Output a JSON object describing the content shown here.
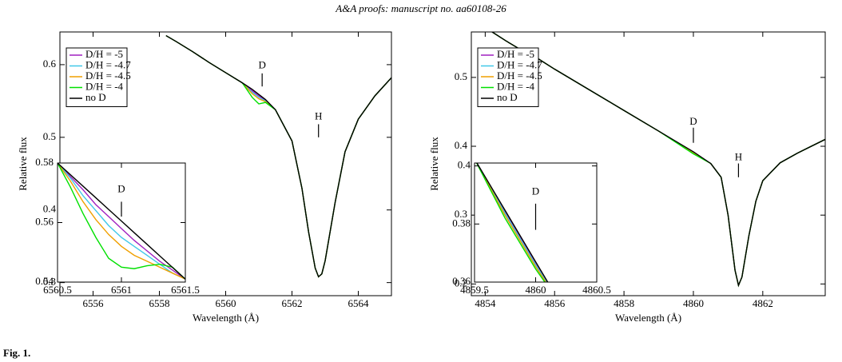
{
  "header": "A&A proofs: manuscript no. aa60108-26",
  "caption": "Fig. 1.",
  "chart_data": [
    {
      "type": "line",
      "xlabel": "Wavelength (Å)",
      "ylabel": "Relative flux",
      "xlim": [
        6555,
        6565
      ],
      "ylim": [
        0.282,
        0.645
      ],
      "xticks": [
        6556,
        6558,
        6560,
        6562,
        6564
      ],
      "yticks": [
        0.3,
        0.4,
        0.5,
        0.6
      ],
      "legend": "upper left",
      "annotations": [
        "D",
        "H"
      ],
      "x": [
        6558.2,
        6558.5,
        6559,
        6559.5,
        6560,
        6560.5,
        6560.8,
        6561,
        6561.2,
        6561.5,
        6562,
        6562.3,
        6562.5,
        6562.7,
        6562.8,
        6562.9,
        6563,
        6563.3,
        6563.6,
        6564,
        6564.5,
        6565
      ],
      "series": [
        {
          "name": "D/H = -5",
          "color": "#a020c0",
          "values": [
            0.64,
            0.632,
            0.618,
            0.603,
            0.589,
            0.575,
            0.564,
            0.557,
            0.551,
            0.538,
            0.495,
            0.43,
            0.37,
            0.32,
            0.308,
            0.312,
            0.33,
            0.41,
            0.48,
            0.525,
            0.557,
            0.582
          ]
        },
        {
          "name": "D/H = -4.7",
          "color": "#40c8e8",
          "values": [
            0.64,
            0.632,
            0.618,
            0.603,
            0.589,
            0.575,
            0.562,
            0.555,
            0.55,
            0.538,
            0.495,
            0.43,
            0.37,
            0.32,
            0.308,
            0.312,
            0.33,
            0.41,
            0.48,
            0.525,
            0.557,
            0.582
          ]
        },
        {
          "name": "D/H = -4.5",
          "color": "#f0a000",
          "values": [
            0.64,
            0.632,
            0.618,
            0.603,
            0.589,
            0.575,
            0.56,
            0.553,
            0.549,
            0.538,
            0.495,
            0.43,
            0.37,
            0.32,
            0.308,
            0.312,
            0.33,
            0.41,
            0.48,
            0.525,
            0.557,
            0.582
          ]
        },
        {
          "name": "D/H = -4",
          "color": "#00e000",
          "values": [
            0.64,
            0.632,
            0.618,
            0.603,
            0.589,
            0.575,
            0.555,
            0.546,
            0.548,
            0.538,
            0.495,
            0.43,
            0.37,
            0.32,
            0.308,
            0.312,
            0.33,
            0.41,
            0.48,
            0.525,
            0.557,
            0.582
          ]
        },
        {
          "name": "no D",
          "color": "#000000",
          "values": [
            0.64,
            0.632,
            0.618,
            0.603,
            0.589,
            0.575,
            0.566,
            0.559,
            0.552,
            0.538,
            0.495,
            0.43,
            0.37,
            0.32,
            0.308,
            0.312,
            0.33,
            0.41,
            0.48,
            0.525,
            0.557,
            0.582
          ]
        }
      ]
    },
    {
      "type": "line",
      "xlim": [
        6560.5,
        6561.5
      ],
      "ylim": [
        0.54,
        0.58
      ],
      "xticks": [
        6560.5,
        6561,
        6561.5
      ],
      "yticks": [
        0.54,
        0.56,
        0.58
      ],
      "annotations": [
        "D"
      ],
      "x": [
        6560.5,
        6560.6,
        6560.7,
        6560.8,
        6560.9,
        6561,
        6561.1,
        6561.2,
        6561.3,
        6561.4,
        6561.5
      ],
      "series": [
        {
          "color": "#a020c0",
          "values": [
            0.58,
            0.5755,
            0.571,
            0.566,
            0.562,
            0.558,
            0.554,
            0.5505,
            0.547,
            0.544,
            0.541
          ]
        },
        {
          "color": "#40c8e8",
          "values": [
            0.58,
            0.575,
            0.569,
            0.564,
            0.559,
            0.555,
            0.552,
            0.549,
            0.546,
            0.543,
            0.541
          ]
        },
        {
          "color": "#f0a000",
          "values": [
            0.58,
            0.574,
            0.567,
            0.561,
            0.556,
            0.552,
            0.549,
            0.547,
            0.545,
            0.543,
            0.541
          ]
        },
        {
          "color": "#00e000",
          "values": [
            0.58,
            0.572,
            0.563,
            0.555,
            0.548,
            0.545,
            0.5445,
            0.5455,
            0.546,
            0.545,
            0.541
          ]
        },
        {
          "color": "#000000",
          "values": [
            0.58,
            0.5761,
            0.5722,
            0.5683,
            0.5644,
            0.5605,
            0.5566,
            0.5527,
            0.5488,
            0.5449,
            0.541
          ]
        }
      ]
    },
    {
      "type": "line",
      "xlabel": "Wavelength (Å)",
      "ylabel": "Relative flux",
      "xlim": [
        4853.6,
        4863.8
      ],
      "ylim": [
        0.183,
        0.566
      ],
      "xticks": [
        4854,
        4856,
        4858,
        4860,
        4862
      ],
      "yticks": [
        0.2,
        0.3,
        0.4,
        0.5
      ],
      "legend": "upper left",
      "annotations": [
        "D",
        "H"
      ],
      "x": [
        4854.2,
        4854.6,
        4855,
        4855.2,
        4855.5,
        4856,
        4857,
        4858,
        4859,
        4860,
        4860.5,
        4860.8,
        4861,
        4861.2,
        4861.3,
        4861.4,
        4861.6,
        4861.8,
        4862,
        4862.5,
        4863,
        4863.8
      ],
      "series": [
        {
          "name": "D/H = -5",
          "color": "#a020c0",
          "values": [
            0.566,
            0.553,
            0.541,
            0.536,
            0.528,
            0.512,
            0.482,
            0.452,
            0.422,
            0.391,
            0.375,
            0.355,
            0.3,
            0.22,
            0.198,
            0.21,
            0.27,
            0.32,
            0.35,
            0.376,
            0.39,
            0.41
          ]
        },
        {
          "name": "D/H = -4.7",
          "color": "#40c8e8",
          "values": [
            0.566,
            0.553,
            0.541,
            0.536,
            0.528,
            0.512,
            0.482,
            0.452,
            0.422,
            0.3905,
            0.375,
            0.355,
            0.3,
            0.22,
            0.198,
            0.21,
            0.27,
            0.32,
            0.35,
            0.376,
            0.39,
            0.41
          ]
        },
        {
          "name": "D/H = -4.5",
          "color": "#f0a000",
          "values": [
            0.566,
            0.553,
            0.541,
            0.536,
            0.528,
            0.512,
            0.482,
            0.452,
            0.422,
            0.39,
            0.375,
            0.355,
            0.3,
            0.22,
            0.198,
            0.21,
            0.27,
            0.32,
            0.35,
            0.376,
            0.39,
            0.41
          ]
        },
        {
          "name": "D/H = -4",
          "color": "#00e000",
          "values": [
            0.566,
            0.553,
            0.541,
            0.536,
            0.528,
            0.512,
            0.482,
            0.452,
            0.422,
            0.389,
            0.375,
            0.355,
            0.3,
            0.22,
            0.198,
            0.21,
            0.27,
            0.32,
            0.35,
            0.376,
            0.39,
            0.41
          ]
        },
        {
          "name": "no D",
          "color": "#000000",
          "values": [
            0.566,
            0.553,
            0.541,
            0.536,
            0.528,
            0.512,
            0.482,
            0.452,
            0.422,
            0.392,
            0.375,
            0.355,
            0.3,
            0.22,
            0.198,
            0.21,
            0.27,
            0.32,
            0.35,
            0.376,
            0.39,
            0.41
          ]
        }
      ]
    },
    {
      "type": "line",
      "xlim": [
        4859.5,
        4860.5
      ],
      "ylim": [
        0.36,
        0.401
      ],
      "xticks": [
        4859.5,
        4860,
        4860.5
      ],
      "yticks": [
        0.36,
        0.38,
        0.4
      ],
      "annotations": [
        "D"
      ],
      "x": [
        4859.5,
        4859.75,
        4860,
        4860.15
      ],
      "series": [
        {
          "color": "#a020c0",
          "values": [
            0.4024,
            0.3842,
            0.3665,
            0.3562
          ]
        },
        {
          "color": "#40c8e8",
          "values": [
            0.4024,
            0.3837,
            0.366,
            0.356
          ]
        },
        {
          "color": "#f0a000",
          "values": [
            0.4024,
            0.383,
            0.3653,
            0.3558
          ]
        },
        {
          "color": "#00e000",
          "values": [
            0.4024,
            0.382,
            0.3645,
            0.3555
          ]
        },
        {
          "color": "#000000",
          "values": [
            0.4024,
            0.3847,
            0.367,
            0.3564
          ]
        }
      ]
    }
  ]
}
